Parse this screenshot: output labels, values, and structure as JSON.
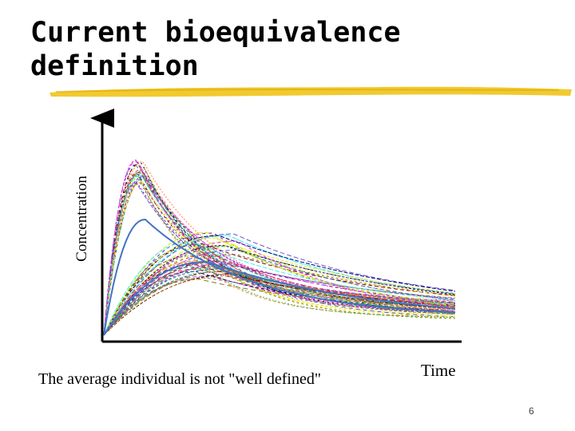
{
  "slide": {
    "title_lines": [
      "Current bioequivalence",
      "definition"
    ],
    "caption": "The average individual is not \"well defined\"",
    "page_number": "6"
  },
  "chart_data": {
    "type": "line",
    "xlabel": "Time",
    "ylabel": "Concentration",
    "highlight_color": "#4472c4",
    "accent_color": "#f0c419",
    "note": "Many individual concentration-time profiles drawn as dashed multicolor curves; one solid blue average curve."
  }
}
